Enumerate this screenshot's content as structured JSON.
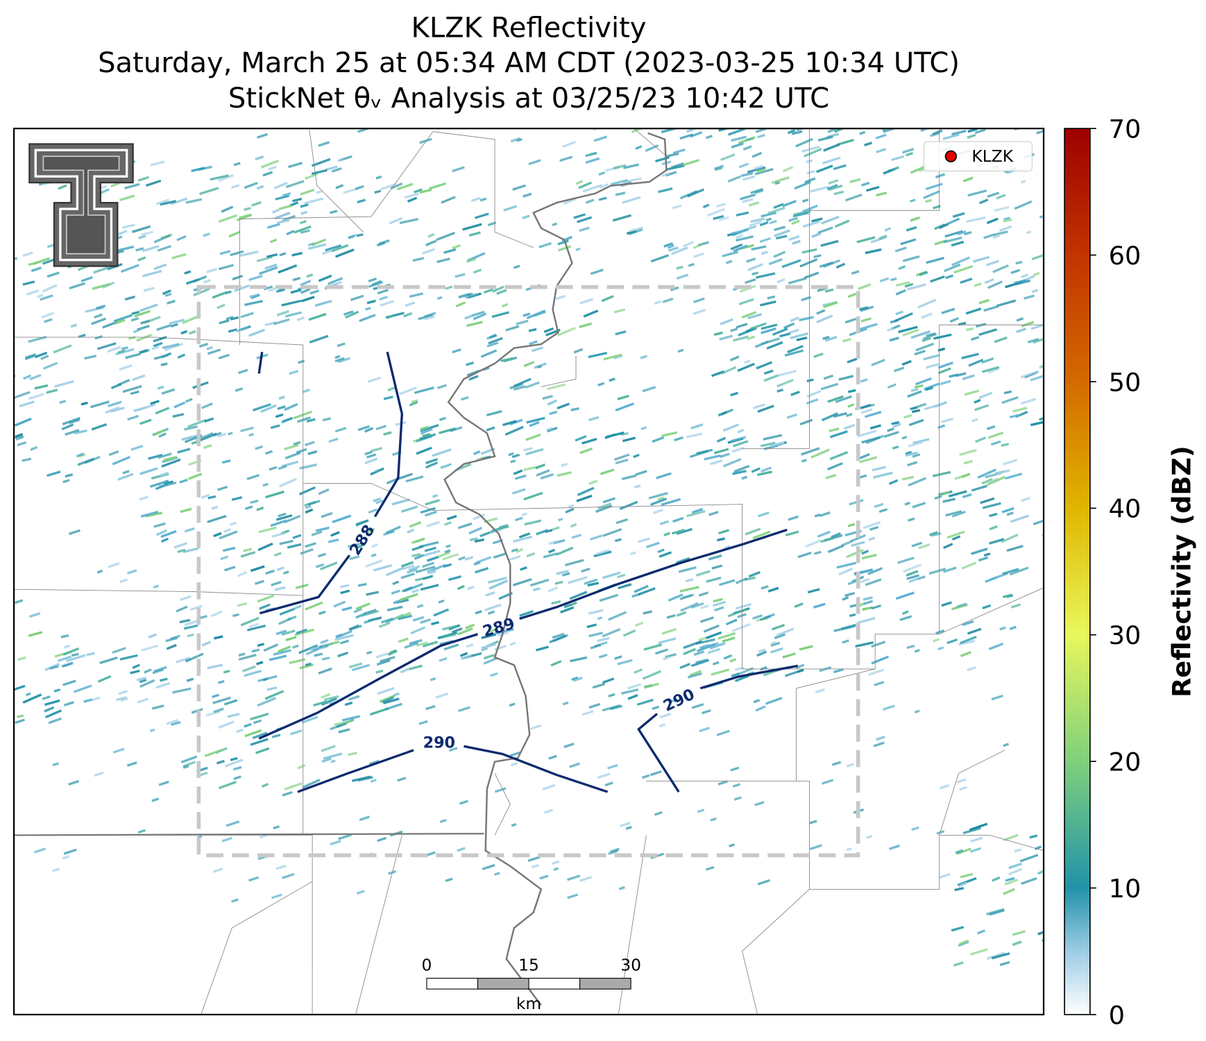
{
  "chart_data": {
    "type": "radar-map",
    "title_lines": [
      "KLZK Reflectivity",
      "Saturday, March 25 at 05:34 AM CDT (2023-03-25 10:34 UTC)",
      "StickNet θᵥ Analysis at 03/25/23 10:42 UTC"
    ],
    "legend": [
      "KLZK"
    ],
    "contour_labels": [
      "288",
      "289",
      "290",
      "290"
    ],
    "scale_bar": {
      "labels": [
        "0",
        "15",
        "30"
      ],
      "unit": "km"
    },
    "colorbar": {
      "label": "Reflectivity (dBZ)",
      "lim": [
        0,
        70
      ],
      "ticks": [
        0,
        10,
        20,
        30,
        40,
        50,
        60,
        70
      ]
    }
  }
}
